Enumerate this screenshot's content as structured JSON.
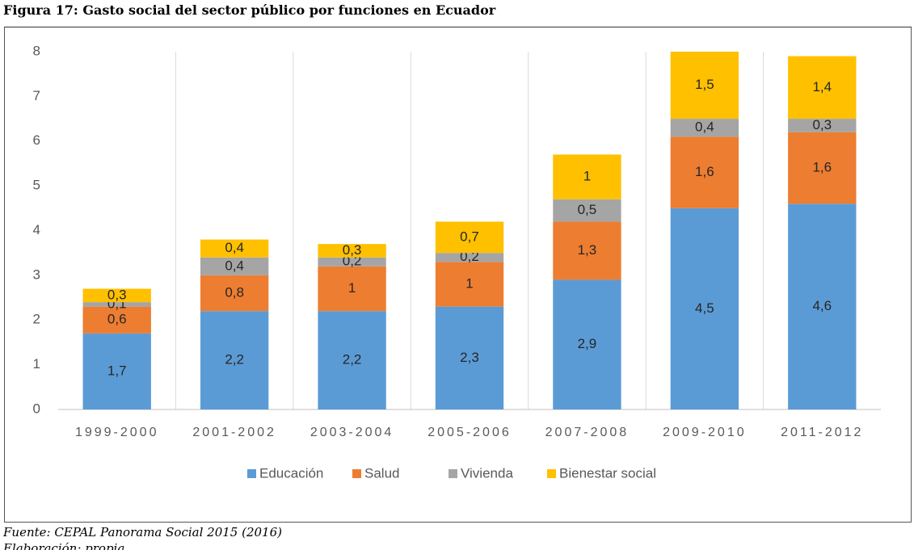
{
  "chart_data": {
    "type": "stacked_bar",
    "title": "Figura 17: Gasto social del sector público por funciones en Ecuador",
    "notes": [
      "Fuente: CEPAL Panorama Social 2015 (2016)",
      "Elaboración: propia"
    ],
    "categories": [
      "1999-2000",
      "2001-2002",
      "2003-2004",
      "2005-2006",
      "2007-2008",
      "2009-2010",
      "2011-2012"
    ],
    "series": [
      {
        "name": "Educación",
        "color": "#5b9bd5",
        "values": [
          1.7,
          2.2,
          2.2,
          2.3,
          2.9,
          4.5,
          4.6
        ],
        "value_labels": [
          "1,7",
          "2,2",
          "2,2",
          "2,3",
          "2,9",
          "4,5",
          "4,6"
        ]
      },
      {
        "name": "Salud",
        "color": "#ed7d31",
        "values": [
          0.6,
          0.8,
          1,
          1,
          1.3,
          1.6,
          1.6
        ],
        "value_labels": [
          "0,6",
          "0,8",
          "1",
          "1",
          "1,3",
          "1,6",
          "1,6"
        ]
      },
      {
        "name": "Vivienda",
        "color": "#a5a5a5",
        "values": [
          0.1,
          0.4,
          0.2,
          0.2,
          0.5,
          0.4,
          0.3
        ],
        "value_labels": [
          "0,1",
          "0,4",
          "0,2",
          "0,2",
          "0,5",
          "0,4",
          "0,3"
        ]
      },
      {
        "name": "Bienestar social",
        "color": "#ffc000",
        "values": [
          0.3,
          0.4,
          0.3,
          0.7,
          1,
          1.5,
          1.4
        ],
        "value_labels": [
          "0,3",
          "0,4",
          "0,3",
          "0,7",
          "1",
          "1,5",
          "1,4"
        ]
      }
    ],
    "ylim": [
      0,
      8
    ],
    "yticks": [
      0,
      1,
      2,
      3,
      4,
      5,
      6,
      7,
      8
    ],
    "legend": "bottom"
  }
}
